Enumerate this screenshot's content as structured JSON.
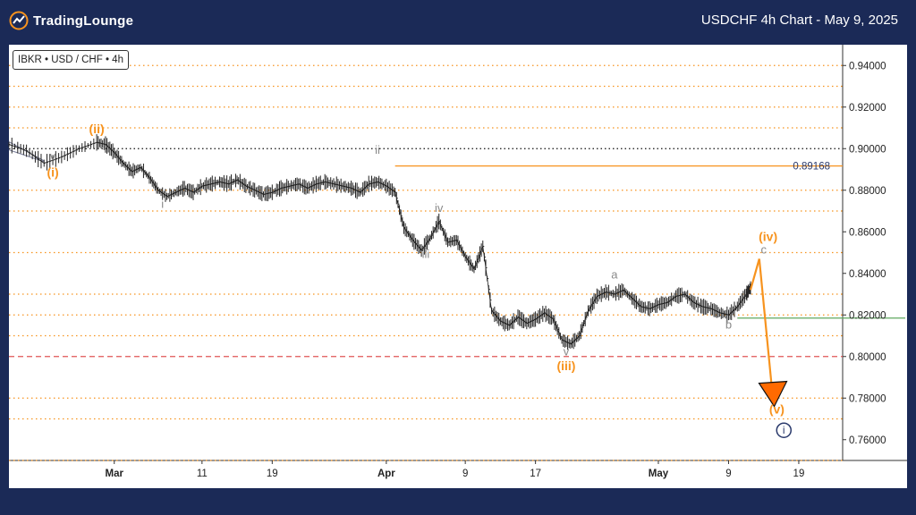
{
  "header": {
    "logo_text": "TradingLounge",
    "title": "USDCHF 4h Chart - May 9, 2025"
  },
  "symbol_label": "IBKR • USD / CHF • 4h",
  "colors": {
    "background": "#1b2a57",
    "orange": "#f7931e",
    "navy": "#2a3a6c",
    "grey_wave": "#8a8a8a",
    "red_dashed": "#e05555",
    "green": "#5fa85f",
    "price": "#222222"
  },
  "chart_data": {
    "type": "line",
    "title": "USDCHF 4h Chart - May 9, 2025",
    "ylim": [
      0.75,
      0.95
    ],
    "x_range_days": [
      0,
      95
    ],
    "x_ticks": [
      {
        "label": "Mar",
        "day": 12,
        "bold": true
      },
      {
        "label": "11",
        "day": 22,
        "bold": false
      },
      {
        "label": "19",
        "day": 30,
        "bold": false
      },
      {
        "label": "Apr",
        "day": 43,
        "bold": true
      },
      {
        "label": "9",
        "day": 52,
        "bold": false
      },
      {
        "label": "17",
        "day": 60,
        "bold": false
      },
      {
        "label": "May",
        "day": 74,
        "bold": true
      },
      {
        "label": "9",
        "day": 82,
        "bold": false
      },
      {
        "label": "19",
        "day": 90,
        "bold": false
      }
    ],
    "y_ticks": [
      "0.94000",
      "0.92000",
      "0.90000",
      "0.88000",
      "0.86000",
      "0.84000",
      "0.82000",
      "0.80000",
      "0.78000",
      "0.76000"
    ],
    "y_tick_values": [
      0.94,
      0.92,
      0.9,
      0.88,
      0.86,
      0.84,
      0.82,
      0.8,
      0.78,
      0.76
    ],
    "horizontal_lines": {
      "orange_dotted": [
        0.94,
        0.93,
        0.92,
        0.91,
        0.88,
        0.87,
        0.85,
        0.83,
        0.82,
        0.81,
        0.78,
        0.77,
        0.75
      ],
      "black_dotted": 0.9,
      "red_dashed": 0.8,
      "resistance": {
        "value": 0.89168,
        "label": "0.89168",
        "from_day": 44
      },
      "green_support": {
        "value": 0.8185,
        "from_day": 83
      }
    },
    "price": [
      [
        0,
        0.902
      ],
      [
        2,
        0.899
      ],
      [
        4,
        0.893
      ],
      [
        6,
        0.896
      ],
      [
        8,
        0.9
      ],
      [
        10,
        0.903
      ],
      [
        11,
        0.902
      ],
      [
        12,
        0.898
      ],
      [
        13,
        0.893
      ],
      [
        14,
        0.889
      ],
      [
        15,
        0.891
      ],
      [
        16,
        0.886
      ],
      [
        17,
        0.88
      ],
      [
        18,
        0.877
      ],
      [
        19,
        0.879
      ],
      [
        20,
        0.881
      ],
      [
        21,
        0.879
      ],
      [
        22,
        0.882
      ],
      [
        23,
        0.883
      ],
      [
        24,
        0.884
      ],
      [
        25,
        0.883
      ],
      [
        26,
        0.885
      ],
      [
        27,
        0.882
      ],
      [
        28,
        0.88
      ],
      [
        29,
        0.878
      ],
      [
        30,
        0.879
      ],
      [
        31,
        0.881
      ],
      [
        32,
        0.882
      ],
      [
        33,
        0.883
      ],
      [
        34,
        0.881
      ],
      [
        35,
        0.883
      ],
      [
        36,
        0.884
      ],
      [
        37,
        0.883
      ],
      [
        38,
        0.882
      ],
      [
        39,
        0.881
      ],
      [
        40,
        0.879
      ],
      [
        41,
        0.883
      ],
      [
        42,
        0.884
      ],
      [
        43,
        0.882
      ],
      [
        44,
        0.879
      ],
      [
        45,
        0.862
      ],
      [
        46,
        0.856
      ],
      [
        47,
        0.851
      ],
      [
        48,
        0.857
      ],
      [
        49,
        0.865
      ],
      [
        50,
        0.855
      ],
      [
        51,
        0.856
      ],
      [
        52,
        0.848
      ],
      [
        53,
        0.842
      ],
      [
        54,
        0.853
      ],
      [
        55,
        0.822
      ],
      [
        56,
        0.817
      ],
      [
        57,
        0.815
      ],
      [
        58,
        0.819
      ],
      [
        59,
        0.816
      ],
      [
        60,
        0.818
      ],
      [
        61,
        0.821
      ],
      [
        62,
        0.818
      ],
      [
        63,
        0.808
      ],
      [
        64,
        0.806
      ],
      [
        65,
        0.81
      ],
      [
        66,
        0.822
      ],
      [
        67,
        0.829
      ],
      [
        68,
        0.831
      ],
      [
        69,
        0.83
      ],
      [
        70,
        0.832
      ],
      [
        71,
        0.828
      ],
      [
        72,
        0.824
      ],
      [
        73,
        0.823
      ],
      [
        74,
        0.825
      ],
      [
        75,
        0.826
      ],
      [
        76,
        0.829
      ],
      [
        77,
        0.83
      ],
      [
        78,
        0.826
      ],
      [
        79,
        0.824
      ],
      [
        80,
        0.823
      ],
      [
        81,
        0.821
      ],
      [
        82,
        0.82
      ],
      [
        83,
        0.824
      ],
      [
        84,
        0.83
      ],
      [
        84.5,
        0.833
      ]
    ],
    "wave_labels": [
      {
        "text": "v",
        "day": 5,
        "price": 0.8945,
        "color": "grey",
        "size": 13
      },
      {
        "text": "(i)",
        "day": 5,
        "price": 0.8865,
        "color": "orange",
        "size": 14
      },
      {
        "text": "(ii)",
        "day": 10,
        "price": 0.9075,
        "color": "orange",
        "size": 14
      },
      {
        "text": "i",
        "day": 17.5,
        "price": 0.8715,
        "color": "grey",
        "size": 13
      },
      {
        "text": "ii",
        "day": 42,
        "price": 0.8975,
        "color": "grey",
        "size": 13
      },
      {
        "text": "iii",
        "day": 47.5,
        "price": 0.8475,
        "color": "grey",
        "size": 13
      },
      {
        "text": "iv",
        "day": 49,
        "price": 0.8695,
        "color": "grey",
        "size": 13
      },
      {
        "text": "a",
        "day": 69,
        "price": 0.8375,
        "color": "grey",
        "size": 13
      },
      {
        "text": "v",
        "day": 63.5,
        "price": 0.8005,
        "color": "grey",
        "size": 13
      },
      {
        "text": "(iii)",
        "day": 63.5,
        "price": 0.7935,
        "color": "orange",
        "size": 14
      },
      {
        "text": "b",
        "day": 82,
        "price": 0.8135,
        "color": "grey",
        "size": 13
      },
      {
        "text": "(iv)",
        "day": 86.5,
        "price": 0.8555,
        "color": "orange",
        "size": 14
      },
      {
        "text": "c",
        "day": 86,
        "price": 0.8495,
        "color": "grey",
        "size": 13
      },
      {
        "text": "(v)",
        "day": 87.5,
        "price": 0.7725,
        "color": "orange",
        "size": 14
      },
      {
        "text": "i",
        "day": 88.3,
        "price": 0.7628,
        "color": "navy",
        "size": 12,
        "circled": true
      }
    ],
    "projection": [
      [
        84.5,
        0.832
      ],
      [
        85.5,
        0.847
      ],
      [
        87,
        0.782
      ]
    ],
    "triangle_start": [
      [
        0,
        0.902
      ],
      [
        4,
        0.895
      ]
    ]
  }
}
